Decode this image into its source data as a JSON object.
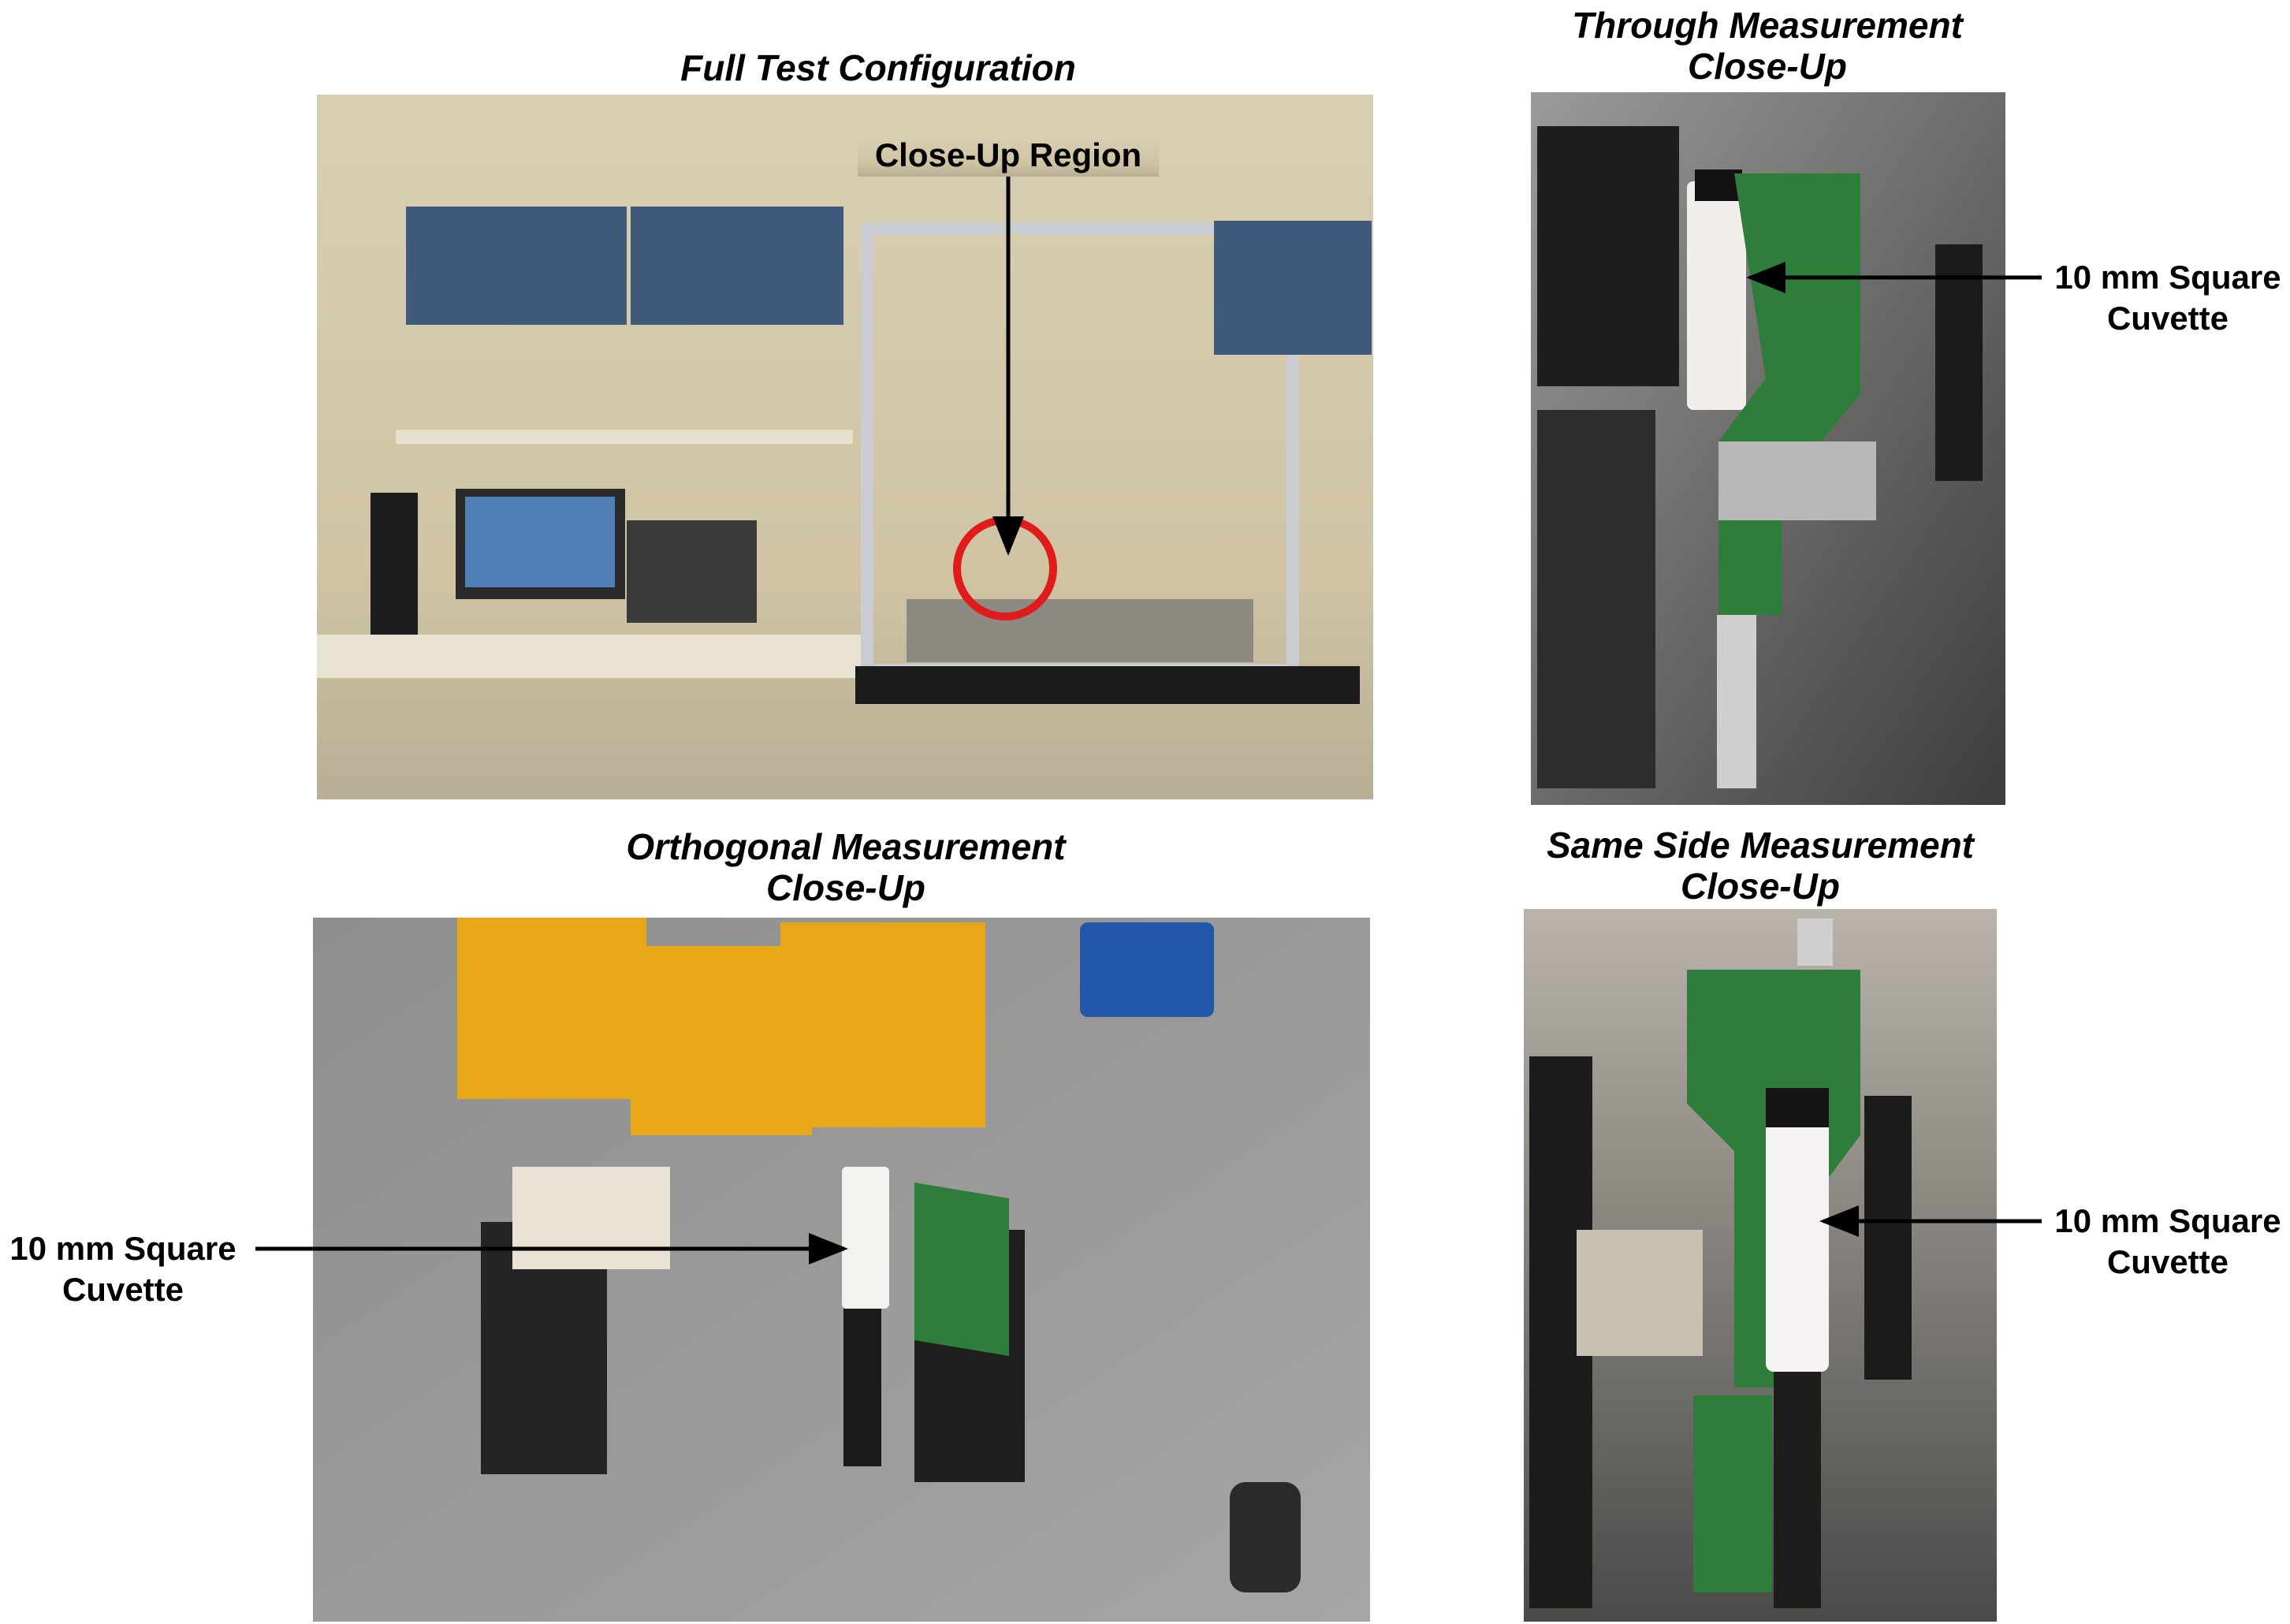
{
  "panels": [
    {
      "title": [
        "Full Test Configuration"
      ],
      "annotation": [
        "Close-Up Region"
      ]
    },
    {
      "title": [
        "Through Measurement",
        "Close-Up"
      ],
      "annotation": [
        "10 mm Square",
        "Cuvette"
      ]
    },
    {
      "title": [
        "Orthogonal Measurement",
        "Close-Up"
      ],
      "annotation": [
        "10 mm Square",
        "Cuvette"
      ]
    },
    {
      "title": [
        "Same Side Measurement",
        "Close-Up"
      ],
      "annotation": [
        "10 mm Square",
        "Cuvette"
      ]
    }
  ]
}
